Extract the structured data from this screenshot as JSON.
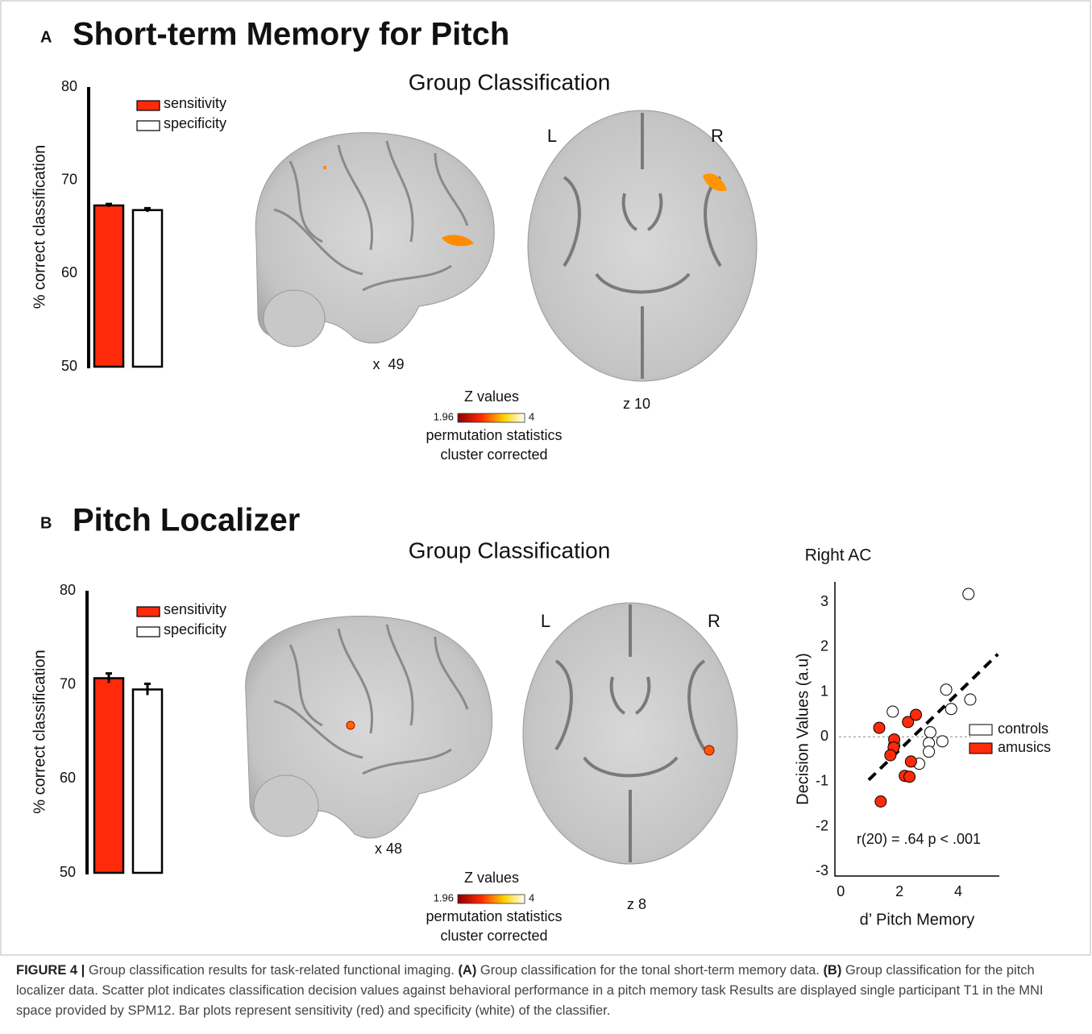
{
  "panels": [
    {
      "label": "A",
      "title": "Short-term Memory for Pitch",
      "heading": "Group Classification",
      "sagittal_label": "x  49",
      "axial_label": "z 10",
      "left": "L",
      "right": "R",
      "colorbar": {
        "title": "Z values",
        "min": 1.96,
        "max": 4,
        "note1": "permutation statistics",
        "note2": "cluster corrected"
      }
    },
    {
      "label": "B",
      "title": "Pitch Localizer",
      "heading": "Group Classification",
      "sagittal_label": "x 48",
      "axial_label": "z 8",
      "left": "L",
      "right": "R",
      "colorbar": {
        "title": "Z values",
        "min": 1.96,
        "max": 4,
        "note1": "permutation statistics",
        "note2": "cluster corrected"
      }
    }
  ],
  "chart_data": [
    {
      "type": "bar",
      "ylabel": "% correct classification",
      "categories": [
        null
      ],
      "ylim": [
        50,
        80
      ],
      "yticks": [
        50,
        60,
        70,
        80
      ],
      "series": [
        {
          "name": "sensitivity",
          "color": "#ff2a0a",
          "values": [
            67.3
          ],
          "errors": [
            0.15
          ]
        },
        {
          "name": "specificity",
          "color": "#ffffff",
          "values": [
            66.8
          ],
          "errors": [
            0.2
          ]
        }
      ]
    },
    {
      "type": "bar",
      "ylabel": "% correct classification",
      "categories": [
        null
      ],
      "ylim": [
        50,
        80
      ],
      "yticks": [
        50,
        60,
        70,
        80
      ],
      "series": [
        {
          "name": "sensitivity",
          "color": "#ff2a0a",
          "values": [
            70.7
          ],
          "errors": [
            0.5
          ]
        },
        {
          "name": "specificity",
          "color": "#ffffff",
          "values": [
            69.5
          ],
          "errors": [
            0.6
          ]
        }
      ]
    },
    {
      "type": "scatter",
      "title": "Right AC",
      "xlabel": "d’ Pitch Memory",
      "ylabel": "Decision Values (a.u)",
      "xlim": [
        -0.2,
        5.4
      ],
      "ylim": [
        -3.1,
        3.45
      ],
      "xticks": [
        0,
        2,
        4
      ],
      "yticks": [
        -3,
        -2,
        -1,
        0,
        1,
        2,
        3
      ],
      "reference_line": 0,
      "legend": "right",
      "annotation": "r(20) = .64 p < .001",
      "trend": {
        "x": [
          0.95,
          5.35
        ],
        "values": [
          -0.96,
          1.84
        ]
      },
      "series": [
        {
          "name": "controls",
          "color": "#ffffff",
          "x": [
            4.35,
            3.59,
            4.41,
            3.76,
            1.77,
            3.05,
            3.0,
            3.46,
            3.0,
            1.82,
            2.67
          ],
          "values": [
            3.18,
            1.05,
            0.83,
            0.62,
            0.56,
            0.1,
            -0.14,
            -0.1,
            -0.33,
            -0.19,
            -0.6
          ]
        },
        {
          "name": "amusics",
          "color": "#ff2a0a",
          "x": [
            1.31,
            1.82,
            1.8,
            1.69,
            2.29,
            2.56,
            2.39,
            2.18,
            2.34,
            1.36
          ],
          "values": [
            0.2,
            -0.06,
            -0.24,
            -0.41,
            0.33,
            0.49,
            -0.55,
            -0.87,
            -0.89,
            -1.44
          ]
        }
      ]
    }
  ],
  "caption": {
    "label": "FIGURE 4 |",
    "text1": " Group classification results for task-related functional imaging. ",
    "a": "(A)",
    "text2": " Group classification for the tonal short-term memory data. ",
    "b": "(B)",
    "text3": " Group classification for the pitch localizer data. Scatter plot indicates classification decision values against behavioral performance in a pitch memory task Results are displayed single participant T1 in the MNI space provided by SPM12. Bar plots represent sensitivity (red) and specificity (white) of the classifier."
  }
}
